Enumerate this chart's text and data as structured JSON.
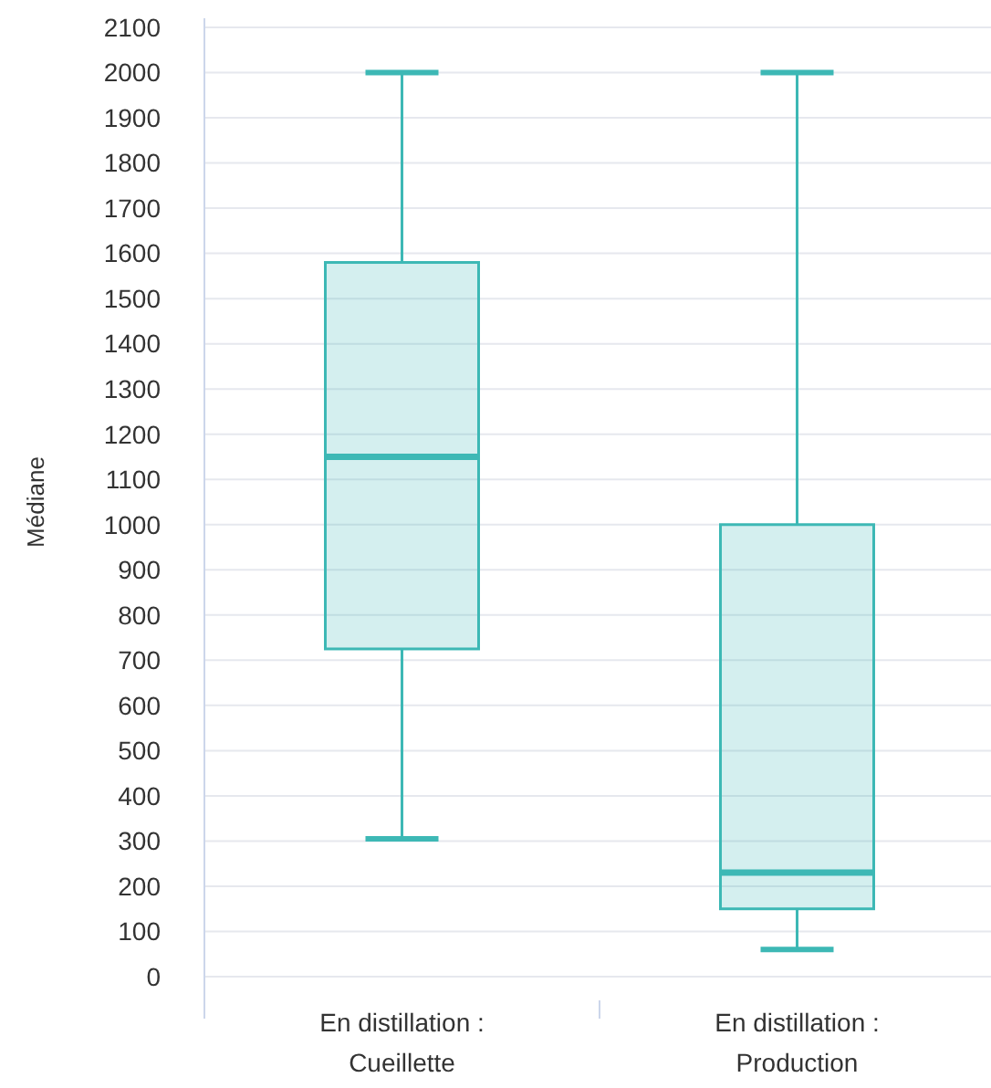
{
  "chart_data": {
    "type": "box",
    "ylabel": "Médiane",
    "categories": [
      "En distillation :\nCueillette",
      "En distillation :\nProduction"
    ],
    "boxes": [
      {
        "low": 305,
        "q1": 725,
        "median": 1150,
        "q3": 1580,
        "high": 2000
      },
      {
        "low": 60,
        "q1": 150,
        "median": 230,
        "q3": 1000,
        "high": 2000
      }
    ],
    "color": "#3db8b5",
    "ylim": [
      0,
      2100
    ],
    "yticks": [
      0,
      100,
      200,
      300,
      400,
      500,
      600,
      700,
      800,
      900,
      1000,
      1100,
      1200,
      1300,
      1400,
      1500,
      1600,
      1700,
      1800,
      1900,
      2000,
      2100
    ],
    "grid": "y"
  }
}
